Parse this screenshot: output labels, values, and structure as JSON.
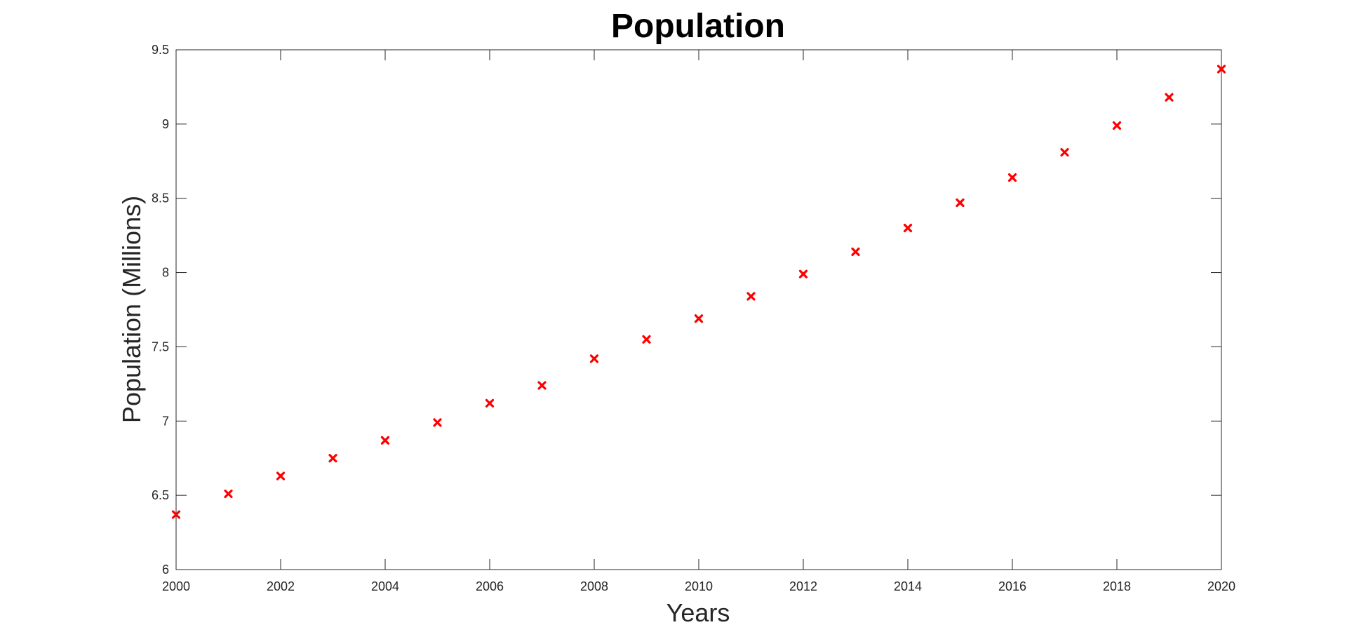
{
  "chart_data": {
    "type": "scatter",
    "title": "Population",
    "xlabel": "Years",
    "ylabel": "Population (Millions)",
    "xlim": [
      2000,
      2020
    ],
    "ylim": [
      6,
      9.5
    ],
    "x_ticks": [
      2000,
      2002,
      2004,
      2006,
      2008,
      2010,
      2012,
      2014,
      2016,
      2018,
      2020
    ],
    "y_ticks": [
      6,
      6.5,
      7,
      7.5,
      8,
      8.5,
      9,
      9.5
    ],
    "y_tick_labels": [
      "6",
      "6.5",
      "7",
      "7.5",
      "8",
      "8.5",
      "9",
      "9.5"
    ],
    "grid": false,
    "marker": "x",
    "marker_color": "#ff0000",
    "series": [
      {
        "x": [
          2000,
          2001,
          2002,
          2003,
          2004,
          2005,
          2006,
          2007,
          2008,
          2009,
          2010,
          2011,
          2012,
          2013,
          2014,
          2015,
          2016,
          2017,
          2018,
          2019,
          2020
        ],
        "y": [
          6.37,
          6.51,
          6.63,
          6.75,
          6.87,
          6.99,
          7.12,
          7.24,
          7.42,
          7.55,
          7.69,
          7.84,
          7.99,
          8.14,
          8.3,
          8.47,
          8.64,
          8.81,
          8.99,
          9.18,
          9.37
        ]
      }
    ]
  }
}
